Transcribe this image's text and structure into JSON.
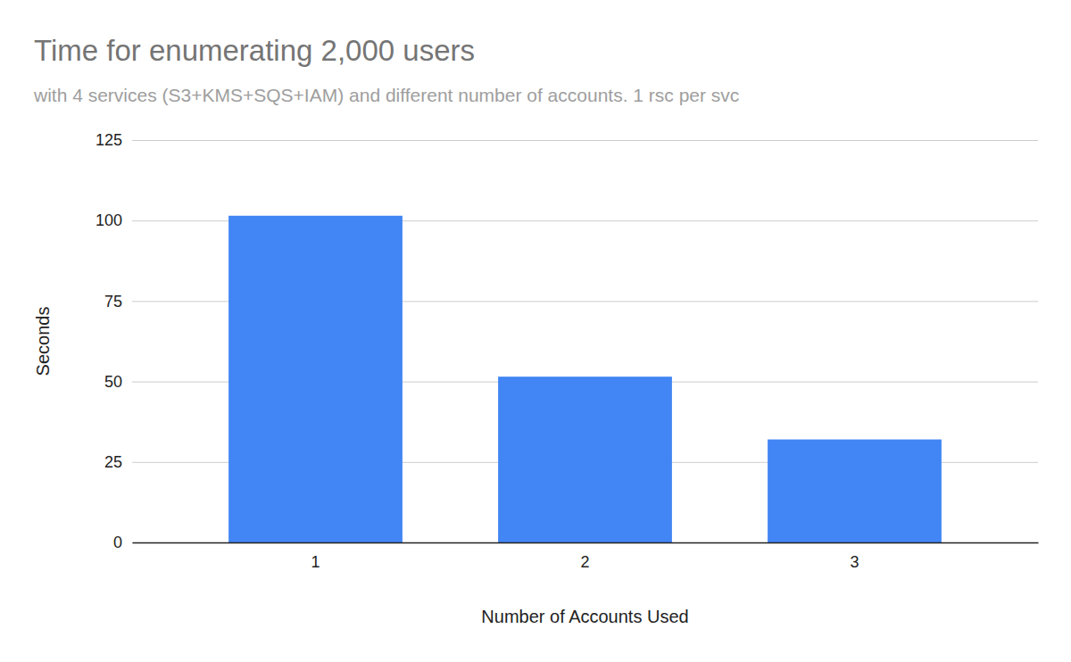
{
  "chart_data": {
    "type": "bar",
    "title": "Time for enumerating 2,000 users",
    "subtitle": "with 4 services (S3+KMS+SQS+IAM) and different number of accounts. 1 rsc per svc",
    "x_label": "Number of Accounts Used",
    "y_label": "Seconds",
    "categories": [
      "1",
      "2",
      "3"
    ],
    "values": [
      101.5,
      51.5,
      32
    ],
    "color": "#4285f4",
    "ylim": [
      0,
      125
    ],
    "yticks": [
      0,
      25,
      50,
      75,
      100,
      125
    ],
    "grid": true
  }
}
